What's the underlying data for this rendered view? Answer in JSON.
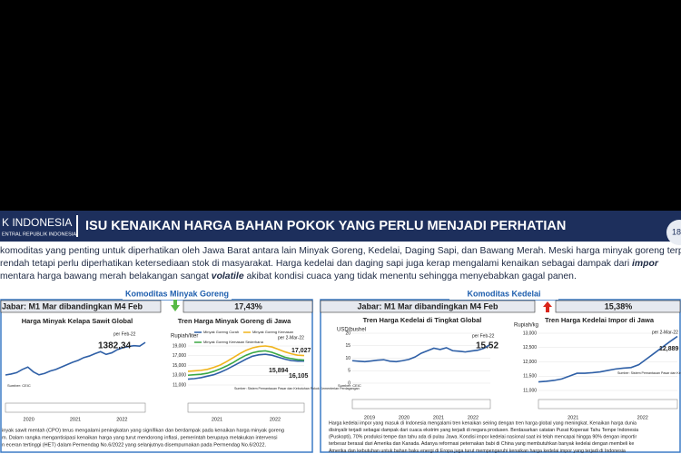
{
  "header": {
    "logo": [
      "K INDONESIA",
      "ENTRAL REPUBLIK INDONESIA"
    ],
    "title": "ISU KENAIKAN HARGA BAHAN POKOK YANG PERLU MENJADI PERHATIAN",
    "page": "18"
  },
  "intro": [
    [
      "komoditas yang penting untuk diperhatikan oleh Jawa Barat antara lain Minyak Goreng, Kedelai, Daging Sapi, dan Bawang Merah. Meski harga minyak goreng terpan"
    ],
    [
      "rendah tetapi perlu diperhatikan ketersediaan stok di masyarakat. Harga kedelai dan daging sapi juga kerap mengalami kenaikan sebagai dampak dari ",
      "impor"
    ],
    [
      "mentara harga bawang merah belakangan sangat ",
      "volatile",
      " akibat kondisi cuaca yang tidak menentu sehingga menyebabkan gagal panen."
    ]
  ],
  "panels": [
    {
      "title": "Komoditas Minyak Goreng",
      "compare": "Jabar: M1 Mar dibandingkan M4 Feb",
      "change": "17,43%",
      "direction": "down",
      "charts": [
        {
          "type": "line",
          "title": "Harga Minyak  Kelapa Sawit Global",
          "ylim": [
            400,
            1500
          ],
          "categories": [
            "2020",
            "2021",
            "2022"
          ],
          "series": [
            {
              "name": "CPO",
              "color": "#2e5fa6",
              "values": [
                560,
                585,
                620,
                700,
                760,
                640,
                565,
                600,
                660,
                700,
                760,
                820,
                880,
                930,
                1000,
                1040,
                1100,
                1150,
                1080,
                1120,
                1200,
                1250,
                1280,
                1300,
                1290,
                1382.34
              ]
            }
          ],
          "annotations": [
            "per Feb-22",
            "1382,34",
            "Sumber: CEIC"
          ]
        },
        {
          "type": "line",
          "title": "Tren Harga  Minyak  Goreng di Jawa",
          "ylabel": "Rupiah/liter",
          "ylim": [
            11000,
            19000
          ],
          "legend": true,
          "yticks": [
            {
              "value": 19000,
              "label": "19,000"
            },
            {
              "value": 17000,
              "label": "17,000"
            },
            {
              "value": 15000,
              "label": "15,000"
            },
            {
              "value": 13000,
              "label": "13,000"
            },
            {
              "value": 11000,
              "label": "11,000"
            }
          ],
          "categories": [
            "2021",
            "2022"
          ],
          "series": [
            {
              "name": "Minyak Goreng Curah",
              "color": "#2e5fa6",
              "values": [
                12200,
                12300,
                12500,
                12800,
                13100,
                13600,
                14200,
                14900,
                15600,
                16300,
                16900,
                17200,
                17300,
                17100,
                16700,
                16300,
                16000,
                15900,
                15894
              ]
            },
            {
              "name": "Minyak Goreng Kemasan",
              "color": "#f0b41c",
              "values": [
                13800,
                13900,
                14000,
                14200,
                14600,
                15100,
                15800,
                16600,
                17400,
                18100,
                18600,
                18900,
                19000,
                18800,
                18300,
                17800,
                17400,
                17100,
                17027
              ]
            },
            {
              "name": "Minyak Goreng Kemasan Sederhana",
              "color": "#3aa843",
              "values": [
                13000,
                13100,
                13200,
                13400,
                13800,
                14300,
                14900,
                15600,
                16400,
                17100,
                17600,
                17900,
                18000,
                17700,
                17200,
                16700,
                16400,
                16200,
                16105
              ]
            }
          ],
          "annotations": [
            "per 2-Mar-22",
            "17,027",
            "15,894",
            "16,105",
            "Sumber: Sistem Pemantauan Pasar dan Kebutuhan Pokok Kementerian Perdagangan"
          ]
        }
      ],
      "text": [
        "inyak sawit mentah (CPO) terus mengalami peningkatan yang signifikan dan berdampak pada kenaikan harga minyak goreng",
        "m. Dalam rangka mengantisipasi kenaikan harga yang turut mendorong inflasi, pemerintah berupaya melakukan intervensi",
        "n eceran tertinggi (HET) dalam Permendag No.6/2022 yang selanjutnya disempurnakan pada Permendag No.6/2022."
      ]
    },
    {
      "title": "Komoditas Kedelai",
      "compare": "Jabar: M1 Mar dibandingkan M4 Feb",
      "change": "15,38%",
      "direction": "up",
      "charts": [
        {
          "type": "line",
          "title": "Tren Harga Kedelai di Tingkat  Global",
          "ylabel": "USD/bushel",
          "ylim": [
            0,
            20
          ],
          "yticks": [
            20,
            15,
            10,
            5,
            0
          ],
          "categories": [
            "2019",
            "2020",
            "2021",
            "2022"
          ],
          "series": [
            {
              "name": "Kedelai Global",
              "color": "#2e5fa6",
              "values": [
                9,
                8.8,
                8.6,
                8.9,
                9.2,
                9.4,
                8.8,
                8.6,
                9,
                9.5,
                10.5,
                12,
                13,
                14,
                13.5,
                14.2,
                13,
                12.8,
                12.5,
                12.9,
                13.2,
                14,
                15.52
              ]
            }
          ],
          "annotations": [
            "per Feb-22",
            "15.52",
            "Sumber: CEIC"
          ]
        },
        {
          "type": "line",
          "title": "Tren Harga Kedelai Impor di  Jawa",
          "ylabel": "Rupiah/kg",
          "ylim": [
            11000,
            13000
          ],
          "yticks": [
            {
              "value": 13000,
              "label": "13,000"
            },
            {
              "value": 12500,
              "label": "12,500"
            },
            {
              "value": 12000,
              "label": "12,000"
            },
            {
              "value": 11500,
              "label": "11,500"
            },
            {
              "value": 11000,
              "label": "11,000"
            }
          ],
          "categories": [
            "2021",
            "2022"
          ],
          "series": [
            {
              "name": "Kedelai Impor",
              "color": "#2e5fa6",
              "values": [
                11300,
                11320,
                11350,
                11400,
                11500,
                11600,
                11600,
                11620,
                11650,
                11700,
                11750,
                11780,
                11800,
                11900,
                12100,
                12300,
                12500,
                12700,
                12889
              ]
            }
          ],
          "annotations": [
            "per 2-Mar-22",
            "12,889",
            "Sumber: Sistem Pemantauan Pasar dan Kebutuhan Pokok Kementerian Perdagangan"
          ]
        }
      ],
      "text": [
        "Harga kedelai impor yang masuk di Indonesia mengalami tren kenaikan seiring dengan tren harga global yang meningkat. Kenaikan harga dunia",
        "disinyalir terjadi sebagai dampak dari cuaca ekstrim yang terjadi di negara produsen. Berdasarkan catatan Pusat Koperasi Tahu Tempe Indonesia",
        "(Puskopti), 70% produksi tempe dan tahu ada di pulau Jawa. Kondisi impor kedelai nasional saat ini telah mencapai hingga 90% dengan importir",
        "terbesar berasal dari Amerika dan Kanada. Adanya reformasi peternakan babi di China yang membutuhkan banyak kedelai dengan membeli ke",
        "Amerika dan kebutuhan untuk bahan baku energi di Eropa juga turut mempengaruhi kenaikan harga kedelai impor yang terjadi di Indonesia"
      ]
    }
  ]
}
